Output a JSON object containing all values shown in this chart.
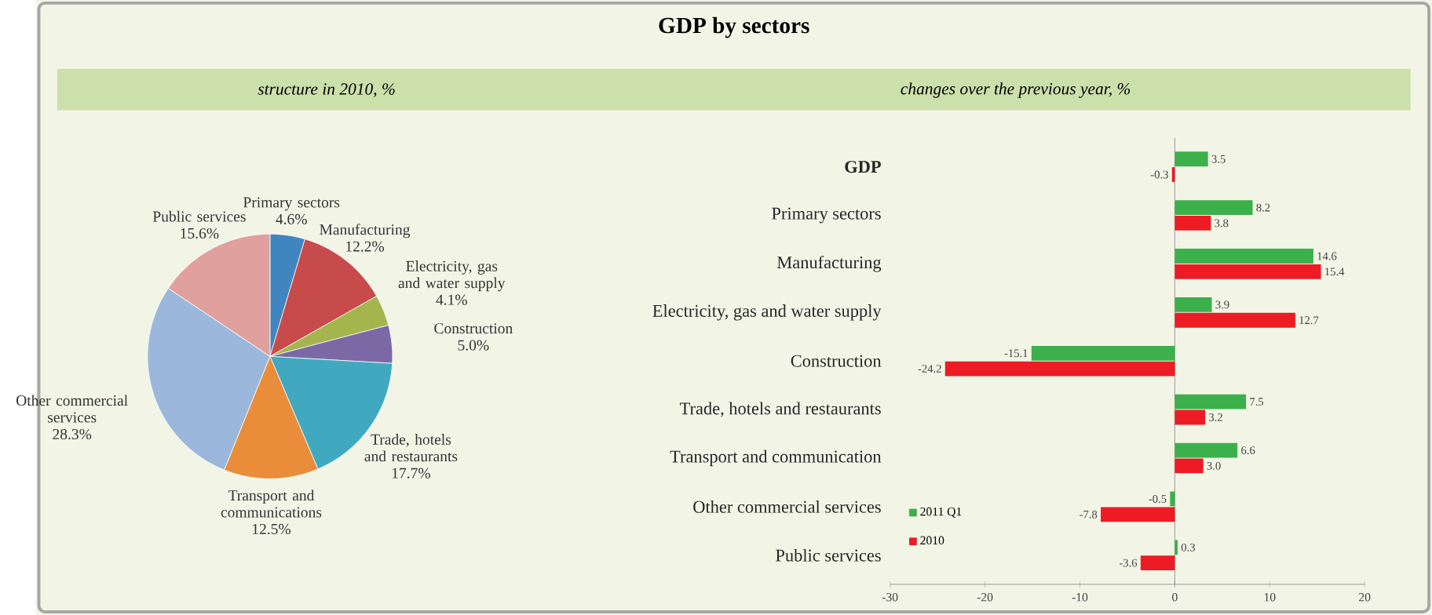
{
  "chart_data": [
    {
      "type": "pie",
      "title": "GDP by sectors",
      "subtitle": "structure in 2010, %",
      "categories": [
        "Primary sectors",
        "Manufacturing",
        "Electricity, gas and water supply",
        "Construction",
        "Trade, hotels and restaurants",
        "Transport and communications",
        "Other commercial services",
        "Public services"
      ],
      "values": [
        4.6,
        12.2,
        4.1,
        5.0,
        17.7,
        12.5,
        28.3,
        15.6
      ],
      "value_labels": [
        "4.6%",
        "12.2%",
        "4.1%",
        "5.0%",
        "17.7%",
        "12.5%",
        "28.3%",
        "15.6%"
      ],
      "colors": [
        "#3f86c1",
        "#c84b4b",
        "#a5b54d",
        "#7c68a5",
        "#41a9bf",
        "#ea8d3b",
        "#9bb8dc",
        "#e0a09e"
      ]
    },
    {
      "type": "bar",
      "orientation": "horizontal",
      "title": "changes over the previous year, %",
      "categories": [
        "GDP",
        "Primary sectors",
        "Manufacturing",
        "Electricity, gas and water supply",
        "Construction",
        "Trade, hotels and restaurants",
        "Transport and communication",
        "Other commercial services",
        "Public services"
      ],
      "series": [
        {
          "name": "2011 Q1",
          "color": "#3cb04a",
          "values": [
            3.5,
            8.2,
            14.6,
            3.9,
            -15.1,
            7.5,
            6.6,
            -0.5,
            0.3
          ],
          "value_labels": [
            "3.5",
            "8.2",
            "14.6",
            "3.9",
            "-15.1",
            "7.5",
            "6.6",
            "-0.5",
            "0.3"
          ]
        },
        {
          "name": "2010",
          "color": "#ed1c24",
          "values": [
            -0.3,
            3.8,
            15.4,
            12.7,
            -24.2,
            3.2,
            3.0,
            -7.8,
            -3.6
          ],
          "value_labels": [
            "-0.3",
            "3.8",
            "15.4",
            "12.7",
            "-24.2",
            "3.2",
            "3.0",
            "-7.8",
            "-3.6"
          ]
        }
      ],
      "xlim": [
        -30,
        20
      ],
      "xticks": [
        -30,
        -20,
        -10,
        0,
        10,
        20
      ],
      "legend": "bottom left"
    }
  ]
}
